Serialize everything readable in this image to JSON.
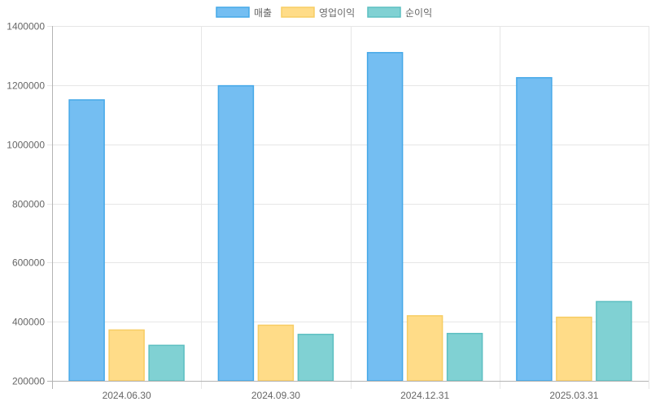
{
  "chart_data": {
    "type": "bar",
    "categories": [
      "2024.06.30",
      "2024.09.30",
      "2024.12.31",
      "2025.03.31"
    ],
    "series": [
      {
        "name": "매출",
        "values": [
          1150000,
          1198000,
          1310000,
          1225000
        ],
        "fill": "#74bef2",
        "stroke": "#45a8e8"
      },
      {
        "name": "영업이익",
        "values": [
          372000,
          388000,
          420000,
          415000
        ],
        "fill": "#ffdc88",
        "stroke": "#f7cd64"
      },
      {
        "name": "순이익",
        "values": [
          320000,
          357000,
          360000,
          468000
        ],
        "fill": "#80d1d3",
        "stroke": "#5cbfc1"
      }
    ],
    "ylim": [
      200000,
      1400000
    ],
    "yticks": [
      200000,
      400000,
      600000,
      800000,
      1000000,
      1200000,
      1400000
    ],
    "ytick_labels": [
      "200000",
      "400000",
      "600000",
      "800000",
      "1000000",
      "1200000",
      "1400000"
    ],
    "grid": true,
    "legend_position": "top-center"
  }
}
